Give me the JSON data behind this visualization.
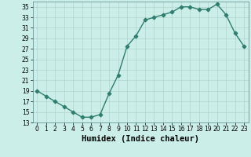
{
  "x": [
    0,
    1,
    2,
    3,
    4,
    5,
    6,
    7,
    8,
    9,
    10,
    11,
    12,
    13,
    14,
    15,
    16,
    17,
    18,
    19,
    20,
    21,
    22,
    23
  ],
  "y": [
    19,
    18,
    17,
    16,
    15,
    14,
    14,
    14.5,
    18.5,
    22,
    27.5,
    29.5,
    32.5,
    33,
    33.5,
    34,
    35,
    35,
    34.5,
    34.5,
    35.5,
    33.5,
    30,
    27.5
  ],
  "line_color": "#2e7d6e",
  "marker": "D",
  "marker_color": "#2e7d6e",
  "bg_color": "#cceee8",
  "grid_color": "#b0d4cc",
  "xlabel": "Humidex (Indice chaleur)",
  "xlim": [
    -0.5,
    23.5
  ],
  "ylim": [
    13,
    36
  ],
  "yticks": [
    13,
    15,
    17,
    19,
    21,
    23,
    25,
    27,
    29,
    31,
    33,
    35
  ],
  "xticks": [
    0,
    1,
    2,
    3,
    4,
    5,
    6,
    7,
    8,
    9,
    10,
    11,
    12,
    13,
    14,
    15,
    16,
    17,
    18,
    19,
    20,
    21,
    22,
    23
  ],
  "tick_label_fontsize": 5.5,
  "xlabel_fontsize": 7.5,
  "linewidth": 1.0,
  "marker_size": 2.5
}
